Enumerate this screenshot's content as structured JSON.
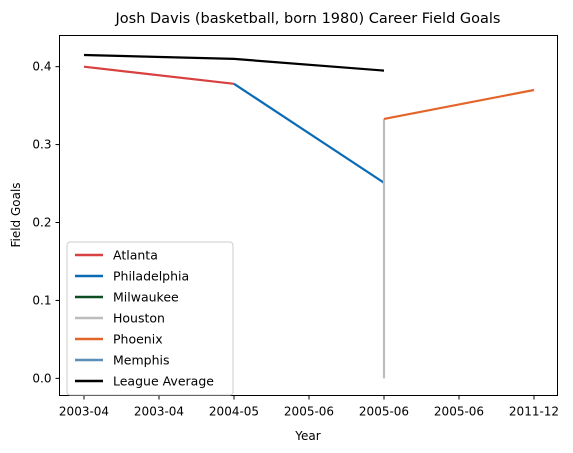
{
  "chart_data": {
    "type": "line",
    "title": "Josh Davis (basketball, born 1980) Career Field Goals",
    "xlabel": "Year",
    "ylabel": "Field Goals",
    "x_ticks": [
      "2003-04",
      "2003-04",
      "2004-05",
      "2005-06",
      "2005-06",
      "2005-06",
      "2011-12"
    ],
    "y_ticks": [
      "0.0",
      "0.1",
      "0.2",
      "0.3",
      "0.4"
    ],
    "ylim": [
      -0.022,
      0.44
    ],
    "grid": false,
    "legend_position": "lower-left",
    "series": [
      {
        "name": "Atlanta",
        "color": "#d94040",
        "points": [
          [
            0,
            0.4
          ],
          [
            2,
            0.378
          ]
        ]
      },
      {
        "name": "Philadelphia",
        "color": "#0a6bb5",
        "points": [
          [
            2,
            0.378
          ],
          [
            4,
            0.251
          ]
        ]
      },
      {
        "name": "Milwaukee",
        "color": "#0c4d22",
        "points": []
      },
      {
        "name": "Houston",
        "color": "#bdbdbd",
        "points": [
          [
            4,
            0.0
          ],
          [
            4,
            0.333
          ]
        ]
      },
      {
        "name": "Phoenix",
        "color": "#e3652a",
        "points": [
          [
            4,
            0.333
          ],
          [
            6,
            0.37
          ]
        ]
      },
      {
        "name": "Memphis",
        "color": "#5b8db8",
        "points": []
      },
      {
        "name": "League Average",
        "color": "#000000",
        "points": [
          [
            0,
            0.415
          ],
          [
            2,
            0.41
          ],
          [
            4,
            0.395
          ]
        ]
      }
    ]
  }
}
